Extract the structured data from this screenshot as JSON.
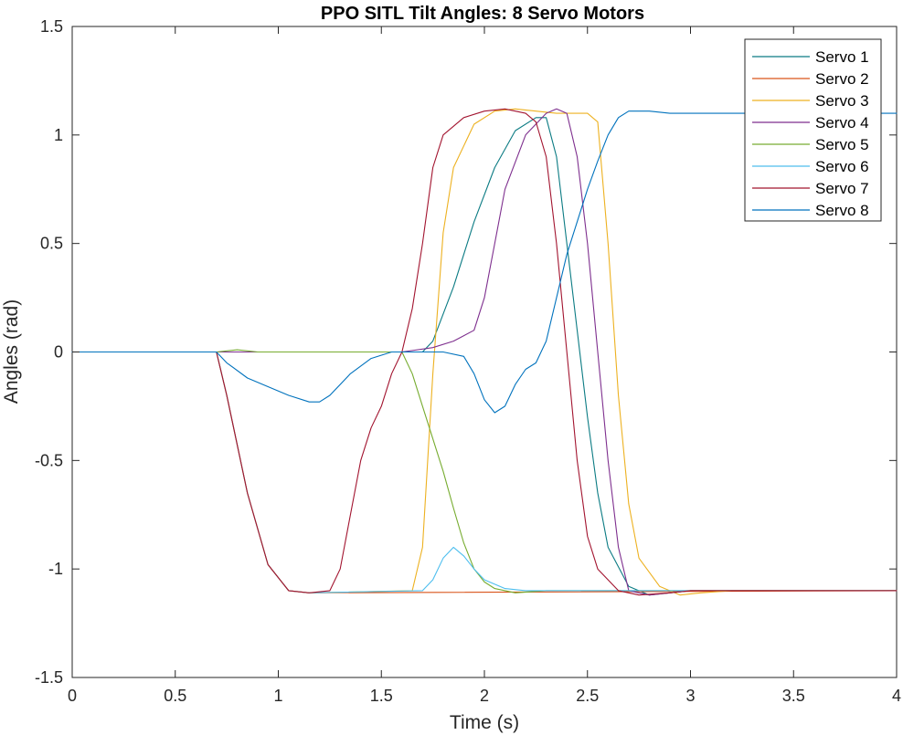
{
  "chart_data": {
    "type": "line",
    "title": "PPO SITL Tilt Angles: 8 Servo Motors",
    "xlabel": "Time (s)",
    "ylabel": "Angles (rad)",
    "xlim": [
      0,
      4
    ],
    "ylim": [
      -1.5,
      1.5
    ],
    "xticks": [
      "0",
      "0.5",
      "1",
      "1.5",
      "2",
      "2.5",
      "3",
      "3.5",
      "4"
    ],
    "yticks": [
      "-1.5",
      "-1",
      "-0.5",
      "0",
      "0.5",
      "1",
      "1.5"
    ],
    "grid": false,
    "legend_position": "top-right",
    "series": [
      {
        "name": "Servo 1",
        "color": "#0b7b83",
        "points": [
          [
            0,
            0
          ],
          [
            1.5,
            0
          ],
          [
            1.6,
            0
          ],
          [
            1.7,
            0
          ],
          [
            1.75,
            0.05
          ],
          [
            1.85,
            0.3
          ],
          [
            1.95,
            0.6
          ],
          [
            2.05,
            0.85
          ],
          [
            2.15,
            1.02
          ],
          [
            2.25,
            1.08
          ],
          [
            2.3,
            1.08
          ],
          [
            2.35,
            0.9
          ],
          [
            2.4,
            0.5
          ],
          [
            2.45,
            0.1
          ],
          [
            2.5,
            -0.3
          ],
          [
            2.55,
            -0.65
          ],
          [
            2.6,
            -0.9
          ],
          [
            2.7,
            -1.08
          ],
          [
            2.8,
            -1.12
          ],
          [
            2.9,
            -1.11
          ],
          [
            3.0,
            -1.1
          ],
          [
            4.0,
            -1.1
          ]
        ]
      },
      {
        "name": "Servo 2",
        "color": "#d95319",
        "points": [
          [
            0,
            0
          ],
          [
            0.7,
            0
          ],
          [
            0.75,
            -0.2
          ],
          [
            0.85,
            -0.65
          ],
          [
            0.95,
            -0.98
          ],
          [
            1.05,
            -1.1
          ],
          [
            1.15,
            -1.11
          ],
          [
            4.0,
            -1.1
          ]
        ]
      },
      {
        "name": "Servo 3",
        "color": "#edb120",
        "points": [
          [
            0,
            0
          ],
          [
            0.7,
            0
          ],
          [
            0.75,
            -0.2
          ],
          [
            0.85,
            -0.65
          ],
          [
            0.95,
            -0.98
          ],
          [
            1.05,
            -1.1
          ],
          [
            1.15,
            -1.11
          ],
          [
            1.65,
            -1.1
          ],
          [
            1.7,
            -0.9
          ],
          [
            1.75,
            -0.1
          ],
          [
            1.8,
            0.55
          ],
          [
            1.85,
            0.85
          ],
          [
            1.95,
            1.05
          ],
          [
            2.05,
            1.11
          ],
          [
            2.15,
            1.12
          ],
          [
            2.25,
            1.11
          ],
          [
            2.35,
            1.1
          ],
          [
            2.5,
            1.1
          ],
          [
            2.55,
            1.06
          ],
          [
            2.6,
            0.5
          ],
          [
            2.65,
            -0.2
          ],
          [
            2.7,
            -0.7
          ],
          [
            2.75,
            -0.95
          ],
          [
            2.85,
            -1.08
          ],
          [
            2.95,
            -1.12
          ],
          [
            3.05,
            -1.11
          ],
          [
            3.2,
            -1.1
          ],
          [
            4.0,
            -1.1
          ]
        ]
      },
      {
        "name": "Servo 4",
        "color": "#7e2f8e",
        "points": [
          [
            0,
            0
          ],
          [
            1.5,
            0
          ],
          [
            1.6,
            0
          ],
          [
            1.75,
            0.02
          ],
          [
            1.85,
            0.05
          ],
          [
            1.95,
            0.1
          ],
          [
            2.0,
            0.25
          ],
          [
            2.05,
            0.5
          ],
          [
            2.1,
            0.75
          ],
          [
            2.2,
            1.0
          ],
          [
            2.3,
            1.1
          ],
          [
            2.35,
            1.12
          ],
          [
            2.4,
            1.1
          ],
          [
            2.45,
            0.9
          ],
          [
            2.5,
            0.5
          ],
          [
            2.55,
            0.0
          ],
          [
            2.6,
            -0.5
          ],
          [
            2.65,
            -0.9
          ],
          [
            2.7,
            -1.1
          ],
          [
            2.8,
            -1.12
          ],
          [
            2.9,
            -1.11
          ],
          [
            3.0,
            -1.1
          ],
          [
            4.0,
            -1.1
          ]
        ]
      },
      {
        "name": "Servo 5",
        "color": "#77ac30",
        "points": [
          [
            0,
            0
          ],
          [
            0.7,
            0
          ],
          [
            0.8,
            0.01
          ],
          [
            0.9,
            0
          ],
          [
            1.0,
            0
          ],
          [
            1.5,
            0
          ],
          [
            1.6,
            0
          ],
          [
            1.65,
            -0.1
          ],
          [
            1.7,
            -0.25
          ],
          [
            1.75,
            -0.4
          ],
          [
            1.8,
            -0.55
          ],
          [
            1.85,
            -0.72
          ],
          [
            1.9,
            -0.88
          ],
          [
            1.95,
            -1.0
          ],
          [
            2.0,
            -1.06
          ],
          [
            2.05,
            -1.09
          ],
          [
            2.15,
            -1.11
          ],
          [
            2.3,
            -1.1
          ],
          [
            4.0,
            -1.1
          ]
        ]
      },
      {
        "name": "Servo 6",
        "color": "#4dbeee",
        "points": [
          [
            0,
            0
          ],
          [
            0.7,
            0
          ],
          [
            0.75,
            -0.2
          ],
          [
            0.85,
            -0.65
          ],
          [
            0.95,
            -0.98
          ],
          [
            1.05,
            -1.1
          ],
          [
            1.15,
            -1.11
          ],
          [
            1.7,
            -1.1
          ],
          [
            1.75,
            -1.05
          ],
          [
            1.8,
            -0.95
          ],
          [
            1.85,
            -0.9
          ],
          [
            1.9,
            -0.94
          ],
          [
            1.95,
            -1.0
          ],
          [
            2.0,
            -1.05
          ],
          [
            2.1,
            -1.09
          ],
          [
            2.2,
            -1.1
          ],
          [
            4.0,
            -1.1
          ]
        ]
      },
      {
        "name": "Servo 7",
        "color": "#a2142f",
        "points": [
          [
            0,
            0
          ],
          [
            0.7,
            0
          ],
          [
            0.75,
            -0.2
          ],
          [
            0.85,
            -0.65
          ],
          [
            0.95,
            -0.98
          ],
          [
            1.05,
            -1.1
          ],
          [
            1.15,
            -1.11
          ],
          [
            1.25,
            -1.1
          ],
          [
            1.3,
            -1.0
          ],
          [
            1.35,
            -0.75
          ],
          [
            1.4,
            -0.5
          ],
          [
            1.45,
            -0.35
          ],
          [
            1.5,
            -0.25
          ],
          [
            1.55,
            -0.1
          ],
          [
            1.6,
            0.0
          ],
          [
            1.65,
            0.2
          ],
          [
            1.7,
            0.5
          ],
          [
            1.75,
            0.85
          ],
          [
            1.8,
            1.0
          ],
          [
            1.9,
            1.08
          ],
          [
            2.0,
            1.11
          ],
          [
            2.1,
            1.12
          ],
          [
            2.2,
            1.1
          ],
          [
            2.25,
            1.06
          ],
          [
            2.3,
            0.9
          ],
          [
            2.35,
            0.5
          ],
          [
            2.4,
            0.0
          ],
          [
            2.45,
            -0.5
          ],
          [
            2.5,
            -0.85
          ],
          [
            2.55,
            -1.0
          ],
          [
            2.65,
            -1.1
          ],
          [
            2.75,
            -1.12
          ],
          [
            2.9,
            -1.11
          ],
          [
            3.0,
            -1.1
          ],
          [
            4.0,
            -1.1
          ]
        ]
      },
      {
        "name": "Servo 8",
        "color": "#0072bd",
        "points": [
          [
            0,
            0
          ],
          [
            0.7,
            0
          ],
          [
            0.75,
            -0.05
          ],
          [
            0.85,
            -0.12
          ],
          [
            0.95,
            -0.16
          ],
          [
            1.05,
            -0.2
          ],
          [
            1.15,
            -0.23
          ],
          [
            1.2,
            -0.23
          ],
          [
            1.25,
            -0.2
          ],
          [
            1.35,
            -0.1
          ],
          [
            1.45,
            -0.03
          ],
          [
            1.55,
            0
          ],
          [
            1.6,
            0
          ],
          [
            1.8,
            0
          ],
          [
            1.9,
            -0.02
          ],
          [
            1.95,
            -0.1
          ],
          [
            2.0,
            -0.22
          ],
          [
            2.05,
            -0.28
          ],
          [
            2.1,
            -0.25
          ],
          [
            2.15,
            -0.15
          ],
          [
            2.2,
            -0.08
          ],
          [
            2.25,
            -0.05
          ],
          [
            2.3,
            0.05
          ],
          [
            2.35,
            0.25
          ],
          [
            2.4,
            0.45
          ],
          [
            2.45,
            0.6
          ],
          [
            2.5,
            0.75
          ],
          [
            2.55,
            0.88
          ],
          [
            2.6,
            1.0
          ],
          [
            2.65,
            1.08
          ],
          [
            2.7,
            1.11
          ],
          [
            2.8,
            1.11
          ],
          [
            2.9,
            1.1
          ],
          [
            3.0,
            1.1
          ],
          [
            4.0,
            1.1
          ]
        ]
      }
    ]
  }
}
